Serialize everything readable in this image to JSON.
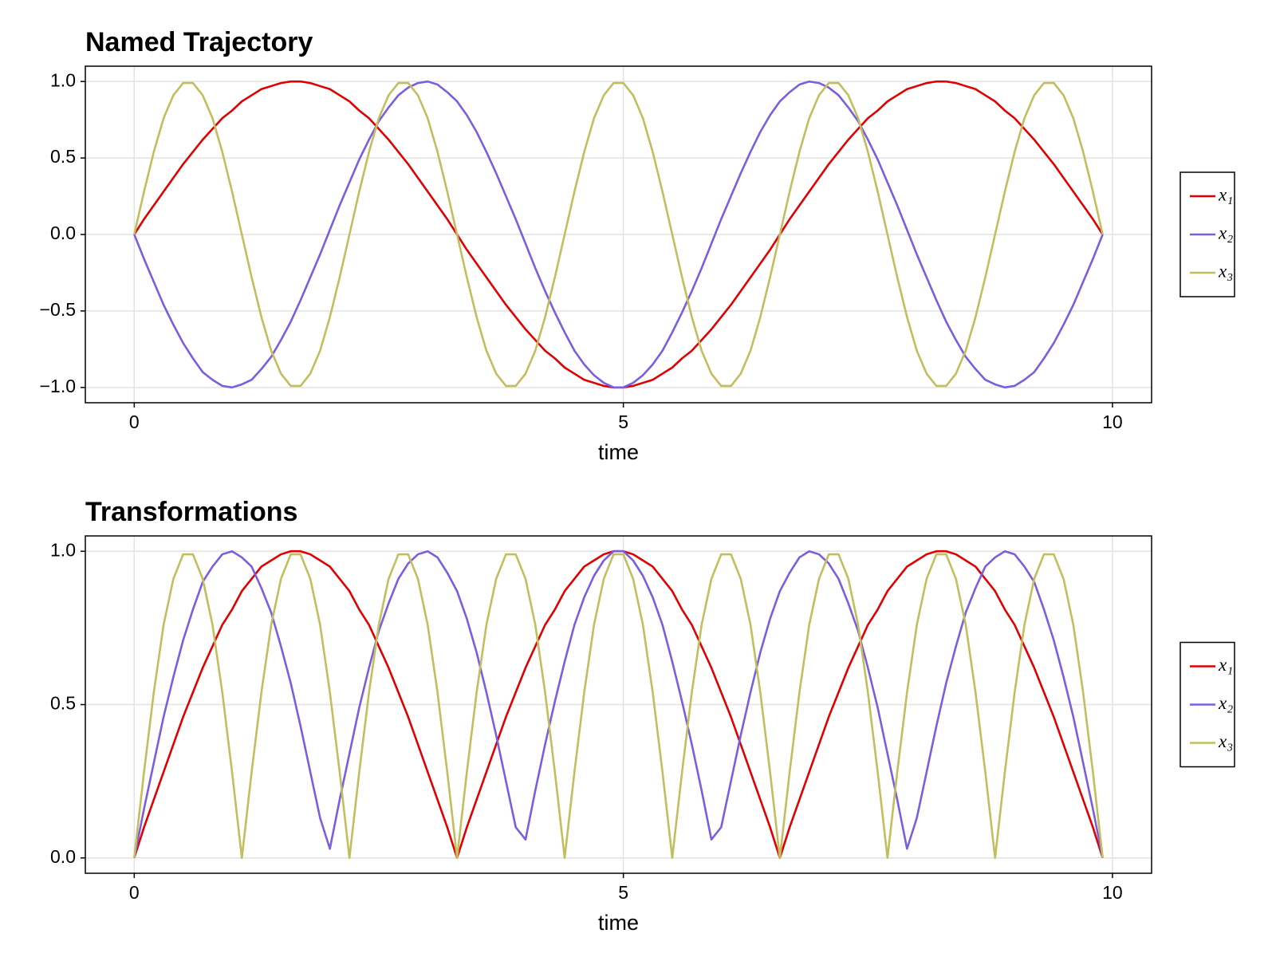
{
  "chart_data": [
    {
      "type": "line",
      "title": "Named Trajectory",
      "x_label": "time",
      "x": [
        0,
        0.1,
        0.2,
        0.3,
        0.4,
        0.5,
        0.6,
        0.7,
        0.8,
        0.9,
        1,
        1.1,
        1.2,
        1.3,
        1.4,
        1.5,
        1.6,
        1.7,
        1.8,
        1.9,
        2,
        2.1,
        2.2,
        2.3,
        2.4,
        2.5,
        2.6,
        2.7,
        2.8,
        2.9,
        3,
        3.1,
        3.2,
        3.3,
        3.4,
        3.5,
        3.6,
        3.7,
        3.8,
        3.9,
        4,
        4.1,
        4.2,
        4.3,
        4.4,
        4.5,
        4.6,
        4.7,
        4.8,
        4.9,
        5,
        5.1,
        5.2,
        5.3,
        5.4,
        5.5,
        5.6,
        5.7,
        5.8,
        5.9,
        6,
        6.1,
        6.2,
        6.3,
        6.4,
        6.5,
        6.6,
        6.7,
        6.8,
        6.9,
        7,
        7.1,
        7.2,
        7.3,
        7.4,
        7.5,
        7.6,
        7.7,
        7.8,
        7.9,
        8,
        8.1,
        8.2,
        8.3,
        8.4,
        8.5,
        8.6,
        8.7,
        8.8,
        8.9,
        9,
        9.1,
        9.2,
        9.3,
        9.4,
        9.5,
        9.6,
        9.7,
        9.8,
        9.9
      ],
      "series": [
        {
          "name": "x₁",
          "color": "#e00000",
          "values": [
            0,
            0.1,
            0.19,
            0.28,
            0.37,
            0.46,
            0.54,
            0.62,
            0.69,
            0.76,
            0.81,
            0.87,
            0.91,
            0.95,
            0.97,
            0.99,
            1,
            1,
            0.99,
            0.97,
            0.95,
            0.91,
            0.87,
            0.81,
            0.76,
            0.69,
            0.62,
            0.54,
            0.46,
            0.37,
            0.28,
            0.19,
            0.1,
            0,
            -0.1,
            -0.19,
            -0.28,
            -0.37,
            -0.46,
            -0.54,
            -0.62,
            -0.69,
            -0.76,
            -0.81,
            -0.87,
            -0.91,
            -0.95,
            -0.97,
            -0.99,
            -1,
            -1,
            -0.99,
            -0.97,
            -0.95,
            -0.91,
            -0.87,
            -0.81,
            -0.76,
            -0.69,
            -0.62,
            -0.54,
            -0.46,
            -0.37,
            -0.28,
            -0.19,
            -0.1,
            0,
            0.1,
            0.19,
            0.28,
            0.37,
            0.46,
            0.54,
            0.62,
            0.69,
            0.76,
            0.81,
            0.87,
            0.91,
            0.95,
            0.97,
            0.99,
            1,
            1,
            0.99,
            0.97,
            0.95,
            0.91,
            0.87,
            0.81,
            0.76,
            0.69,
            0.62,
            0.54,
            0.46,
            0.37,
            0.28,
            0.19,
            0.1,
            0
          ]
        },
        {
          "name": "x₂",
          "color": "#7b5ee0",
          "values": [
            0,
            -0.16,
            -0.31,
            -0.46,
            -0.59,
            -0.71,
            -0.81,
            -0.9,
            -0.95,
            -0.99,
            -1,
            -0.98,
            -0.95,
            -0.88,
            -0.8,
            -0.69,
            -0.57,
            -0.43,
            -0.28,
            -0.13,
            0.03,
            0.19,
            0.34,
            0.49,
            0.62,
            0.74,
            0.83,
            0.91,
            0.96,
            0.99,
            1,
            0.98,
            0.93,
            0.87,
            0.78,
            0.67,
            0.54,
            0.4,
            0.25,
            0.1,
            -0.06,
            -0.22,
            -0.37,
            -0.51,
            -0.64,
            -0.76,
            -0.85,
            -0.92,
            -0.97,
            -1,
            -1,
            -0.97,
            -0.92,
            -0.85,
            -0.76,
            -0.64,
            -0.51,
            -0.37,
            -0.22,
            -0.06,
            0.1,
            0.25,
            0.4,
            0.54,
            0.67,
            0.78,
            0.87,
            0.93,
            0.98,
            1,
            0.99,
            0.96,
            0.91,
            0.83,
            0.74,
            0.62,
            0.49,
            0.34,
            0.19,
            0.03,
            -0.13,
            -0.28,
            -0.43,
            -0.57,
            -0.69,
            -0.8,
            -0.88,
            -0.95,
            -0.98,
            -1,
            -0.99,
            -0.95,
            -0.9,
            -0.81,
            -0.71,
            -0.59,
            -0.46,
            -0.31,
            -0.16,
            0
          ]
        },
        {
          "name": "x₃",
          "color": "#c2be5e",
          "values": [
            0,
            0.28,
            0.54,
            0.76,
            0.91,
            0.99,
            0.99,
            0.91,
            0.76,
            0.54,
            0.28,
            0,
            -0.28,
            -0.54,
            -0.76,
            -0.91,
            -0.99,
            -0.99,
            -0.91,
            -0.76,
            -0.54,
            -0.28,
            0,
            0.28,
            0.54,
            0.76,
            0.91,
            0.99,
            0.99,
            0.91,
            0.76,
            0.54,
            0.28,
            0,
            -0.28,
            -0.54,
            -0.76,
            -0.91,
            -0.99,
            -0.99,
            -0.91,
            -0.76,
            -0.54,
            -0.28,
            0,
            0.28,
            0.54,
            0.76,
            0.91,
            0.99,
            0.99,
            0.91,
            0.76,
            0.54,
            0.28,
            0,
            -0.28,
            -0.54,
            -0.76,
            -0.91,
            -0.99,
            -0.99,
            -0.91,
            -0.76,
            -0.54,
            -0.28,
            0,
            0.28,
            0.54,
            0.76,
            0.91,
            0.99,
            0.99,
            0.91,
            0.76,
            0.54,
            0.28,
            0,
            -0.28,
            -0.54,
            -0.76,
            -0.91,
            -0.99,
            -0.99,
            -0.91,
            -0.76,
            -0.54,
            -0.28,
            0,
            0.28,
            0.54,
            0.76,
            0.91,
            0.99,
            0.99,
            0.91,
            0.76,
            0.54,
            0.28,
            0
          ]
        }
      ],
      "xlim": [
        -0.5,
        10.4
      ],
      "ylim": [
        -1.1,
        1.1
      ],
      "xticks": [
        0,
        5,
        10
      ],
      "yticks": [
        {
          "value": -1,
          "label": "−1.0"
        },
        {
          "value": -0.5,
          "label": "−0.5"
        },
        {
          "value": 0,
          "label": "0.0"
        },
        {
          "value": 0.5,
          "label": "0.5"
        },
        {
          "value": 1,
          "label": "1.0"
        }
      ],
      "grid": true,
      "legend": "right"
    },
    {
      "type": "line",
      "title": "Transformations",
      "x_label": "time",
      "x": [
        0,
        0.1,
        0.2,
        0.3,
        0.4,
        0.5,
        0.6,
        0.7,
        0.8,
        0.9,
        1,
        1.1,
        1.2,
        1.3,
        1.4,
        1.5,
        1.6,
        1.7,
        1.8,
        1.9,
        2,
        2.1,
        2.2,
        2.3,
        2.4,
        2.5,
        2.6,
        2.7,
        2.8,
        2.9,
        3,
        3.1,
        3.2,
        3.3,
        3.4,
        3.5,
        3.6,
        3.7,
        3.8,
        3.9,
        4,
        4.1,
        4.2,
        4.3,
        4.4,
        4.5,
        4.6,
        4.7,
        4.8,
        4.9,
        5,
        5.1,
        5.2,
        5.3,
        5.4,
        5.5,
        5.6,
        5.7,
        5.8,
        5.9,
        6,
        6.1,
        6.2,
        6.3,
        6.4,
        6.5,
        6.6,
        6.7,
        6.8,
        6.9,
        7,
        7.1,
        7.2,
        7.3,
        7.4,
        7.5,
        7.6,
        7.7,
        7.8,
        7.9,
        8,
        8.1,
        8.2,
        8.3,
        8.4,
        8.5,
        8.6,
        8.7,
        8.8,
        8.9,
        9,
        9.1,
        9.2,
        9.3,
        9.4,
        9.5,
        9.6,
        9.7,
        9.8,
        9.9
      ],
      "series": [
        {
          "name": "x₁",
          "color": "#e00000",
          "values": [
            0,
            0.1,
            0.19,
            0.28,
            0.37,
            0.46,
            0.54,
            0.62,
            0.69,
            0.76,
            0.81,
            0.87,
            0.91,
            0.95,
            0.97,
            0.99,
            1,
            1,
            0.99,
            0.97,
            0.95,
            0.91,
            0.87,
            0.81,
            0.76,
            0.69,
            0.62,
            0.54,
            0.46,
            0.37,
            0.28,
            0.19,
            0.1,
            0,
            0.1,
            0.19,
            0.28,
            0.37,
            0.46,
            0.54,
            0.62,
            0.69,
            0.76,
            0.81,
            0.87,
            0.91,
            0.95,
            0.97,
            0.99,
            1,
            1,
            0.99,
            0.97,
            0.95,
            0.91,
            0.87,
            0.81,
            0.76,
            0.69,
            0.62,
            0.54,
            0.46,
            0.37,
            0.28,
            0.19,
            0.1,
            0,
            0.1,
            0.19,
            0.28,
            0.37,
            0.46,
            0.54,
            0.62,
            0.69,
            0.76,
            0.81,
            0.87,
            0.91,
            0.95,
            0.97,
            0.99,
            1,
            1,
            0.99,
            0.97,
            0.95,
            0.91,
            0.87,
            0.81,
            0.76,
            0.69,
            0.62,
            0.54,
            0.46,
            0.37,
            0.28,
            0.19,
            0.1,
            0
          ]
        },
        {
          "name": "x₂",
          "color": "#7b5ee0",
          "values": [
            0,
            0.16,
            0.31,
            0.46,
            0.59,
            0.71,
            0.81,
            0.9,
            0.95,
            0.99,
            1,
            0.98,
            0.95,
            0.88,
            0.8,
            0.69,
            0.57,
            0.43,
            0.28,
            0.13,
            0.03,
            0.19,
            0.34,
            0.49,
            0.62,
            0.74,
            0.83,
            0.91,
            0.96,
            0.99,
            1,
            0.98,
            0.93,
            0.87,
            0.78,
            0.67,
            0.54,
            0.4,
            0.25,
            0.1,
            0.06,
            0.22,
            0.37,
            0.51,
            0.64,
            0.76,
            0.85,
            0.92,
            0.97,
            1,
            1,
            0.97,
            0.92,
            0.85,
            0.76,
            0.64,
            0.51,
            0.37,
            0.22,
            0.06,
            0.1,
            0.25,
            0.4,
            0.54,
            0.67,
            0.78,
            0.87,
            0.93,
            0.98,
            1,
            0.99,
            0.96,
            0.91,
            0.83,
            0.74,
            0.62,
            0.49,
            0.34,
            0.19,
            0.03,
            0.13,
            0.28,
            0.43,
            0.57,
            0.69,
            0.8,
            0.88,
            0.95,
            0.98,
            1,
            0.99,
            0.95,
            0.9,
            0.81,
            0.71,
            0.59,
            0.46,
            0.31,
            0.16,
            0
          ]
        },
        {
          "name": "x₃",
          "color": "#c2be5e",
          "values": [
            0,
            0.28,
            0.54,
            0.76,
            0.91,
            0.99,
            0.99,
            0.91,
            0.76,
            0.54,
            0.28,
            0,
            0.28,
            0.54,
            0.76,
            0.91,
            0.99,
            0.99,
            0.91,
            0.76,
            0.54,
            0.28,
            0,
            0.28,
            0.54,
            0.76,
            0.91,
            0.99,
            0.99,
            0.91,
            0.76,
            0.54,
            0.28,
            0,
            0.28,
            0.54,
            0.76,
            0.91,
            0.99,
            0.99,
            0.91,
            0.76,
            0.54,
            0.28,
            0,
            0.28,
            0.54,
            0.76,
            0.91,
            0.99,
            0.99,
            0.91,
            0.76,
            0.54,
            0.28,
            0,
            0.28,
            0.54,
            0.76,
            0.91,
            0.99,
            0.99,
            0.91,
            0.76,
            0.54,
            0.28,
            0,
            0.28,
            0.54,
            0.76,
            0.91,
            0.99,
            0.99,
            0.91,
            0.76,
            0.54,
            0.28,
            0,
            0.28,
            0.54,
            0.76,
            0.91,
            0.99,
            0.99,
            0.91,
            0.76,
            0.54,
            0.28,
            0,
            0.28,
            0.54,
            0.76,
            0.91,
            0.99,
            0.99,
            0.91,
            0.76,
            0.54,
            0.28,
            0
          ]
        }
      ],
      "xlim": [
        -0.5,
        10.4
      ],
      "ylim": [
        -0.05,
        1.05
      ],
      "xticks": [
        0,
        5,
        10
      ],
      "yticks": [
        {
          "value": 0,
          "label": "0.0"
        },
        {
          "value": 0.5,
          "label": "0.5"
        },
        {
          "value": 1,
          "label": "1.0"
        }
      ],
      "grid": true,
      "legend": "right"
    }
  ]
}
